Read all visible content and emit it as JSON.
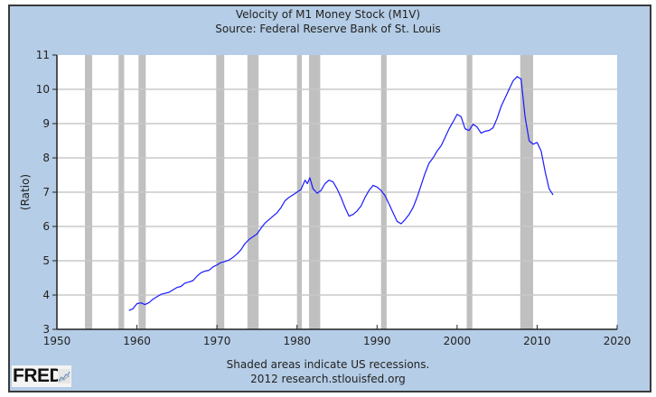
{
  "chart_data": {
    "type": "line",
    "title": "Velocity of M1 Money Stock (M1V)",
    "subtitle": "Source: Federal Reserve Bank of St. Louis",
    "xlabel": "",
    "ylabel": "(Ratio)",
    "xlim": [
      1950,
      2020
    ],
    "ylim": [
      3,
      11
    ],
    "xticks": [
      "1950",
      "1960",
      "1970",
      "1980",
      "1990",
      "2000",
      "2010",
      "2020"
    ],
    "yticks": [
      "3",
      "4",
      "5",
      "6",
      "7",
      "8",
      "9",
      "10",
      "11"
    ],
    "grid": true,
    "line_color": "#1a1aff",
    "recession_color": "#c0c0c0",
    "recessions": [
      [
        1953.5,
        1954.4
      ],
      [
        1957.7,
        1958.4
      ],
      [
        1960.2,
        1961.1
      ],
      [
        1969.9,
        1970.9
      ],
      [
        1973.8,
        1975.2
      ],
      [
        1980.0,
        1980.6
      ],
      [
        1981.5,
        1982.9
      ],
      [
        1990.5,
        1991.2
      ],
      [
        2001.2,
        2001.9
      ],
      [
        2007.9,
        2009.5
      ]
    ],
    "series": [
      {
        "name": "M1V",
        "x": [
          1959.0,
          1959.5,
          1960.0,
          1960.5,
          1961.0,
          1961.5,
          1962.0,
          1962.5,
          1963.0,
          1963.5,
          1964.0,
          1964.5,
          1965.0,
          1965.5,
          1966.0,
          1966.5,
          1967.0,
          1967.5,
          1968.0,
          1968.5,
          1969.0,
          1969.5,
          1970.0,
          1970.5,
          1971.0,
          1971.5,
          1972.0,
          1972.5,
          1973.0,
          1973.5,
          1974.0,
          1974.5,
          1975.0,
          1975.5,
          1976.0,
          1976.5,
          1977.0,
          1977.5,
          1978.0,
          1978.5,
          1979.0,
          1979.5,
          1980.0,
          1980.5,
          1981.0,
          1981.3,
          1981.6,
          1982.0,
          1982.5,
          1983.0,
          1983.5,
          1984.0,
          1984.5,
          1985.0,
          1985.5,
          1986.0,
          1986.5,
          1987.0,
          1987.5,
          1988.0,
          1988.5,
          1989.0,
          1989.5,
          1990.0,
          1990.5,
          1991.0,
          1991.5,
          1992.0,
          1992.5,
          1993.0,
          1993.5,
          1994.0,
          1994.5,
          1995.0,
          1995.5,
          1996.0,
          1996.5,
          1997.0,
          1997.5,
          1998.0,
          1998.5,
          1999.0,
          1999.5,
          2000.0,
          2000.5,
          2001.0,
          2001.5,
          2002.0,
          2002.5,
          2003.0,
          2003.5,
          2004.0,
          2004.5,
          2005.0,
          2005.5,
          2006.0,
          2006.5,
          2007.0,
          2007.5,
          2008.0,
          2008.5,
          2009.0,
          2009.5,
          2010.0,
          2010.5,
          2011.0,
          2011.5,
          2012.0
        ],
        "y": [
          3.55,
          3.6,
          3.75,
          3.77,
          3.72,
          3.78,
          3.88,
          3.95,
          4.02,
          4.05,
          4.08,
          4.15,
          4.22,
          4.25,
          4.35,
          4.38,
          4.42,
          4.55,
          4.65,
          4.7,
          4.72,
          4.82,
          4.88,
          4.95,
          4.98,
          5.02,
          5.1,
          5.2,
          5.32,
          5.5,
          5.62,
          5.7,
          5.78,
          5.95,
          6.1,
          6.2,
          6.3,
          6.4,
          6.55,
          6.75,
          6.85,
          6.92,
          7.0,
          7.08,
          7.35,
          7.25,
          7.42,
          7.1,
          6.97,
          7.05,
          7.25,
          7.35,
          7.3,
          7.1,
          6.85,
          6.55,
          6.3,
          6.35,
          6.45,
          6.6,
          6.85,
          7.05,
          7.2,
          7.15,
          7.05,
          6.9,
          6.65,
          6.4,
          6.15,
          6.08,
          6.2,
          6.35,
          6.55,
          6.85,
          7.2,
          7.55,
          7.85,
          8.0,
          8.2,
          8.35,
          8.6,
          8.85,
          9.05,
          9.27,
          9.2,
          8.85,
          8.8,
          8.98,
          8.9,
          8.72,
          8.78,
          8.8,
          8.88,
          9.15,
          9.5,
          9.75,
          10.0,
          10.25,
          10.37,
          10.3,
          9.2,
          8.5,
          8.4,
          8.45,
          8.2,
          7.6,
          7.1,
          6.92
        ]
      }
    ],
    "footer": {
      "note": "Shaded areas indicate US recessions.",
      "credit": "2012 research.stlouisfed.org",
      "logo_text": "FRED"
    }
  }
}
